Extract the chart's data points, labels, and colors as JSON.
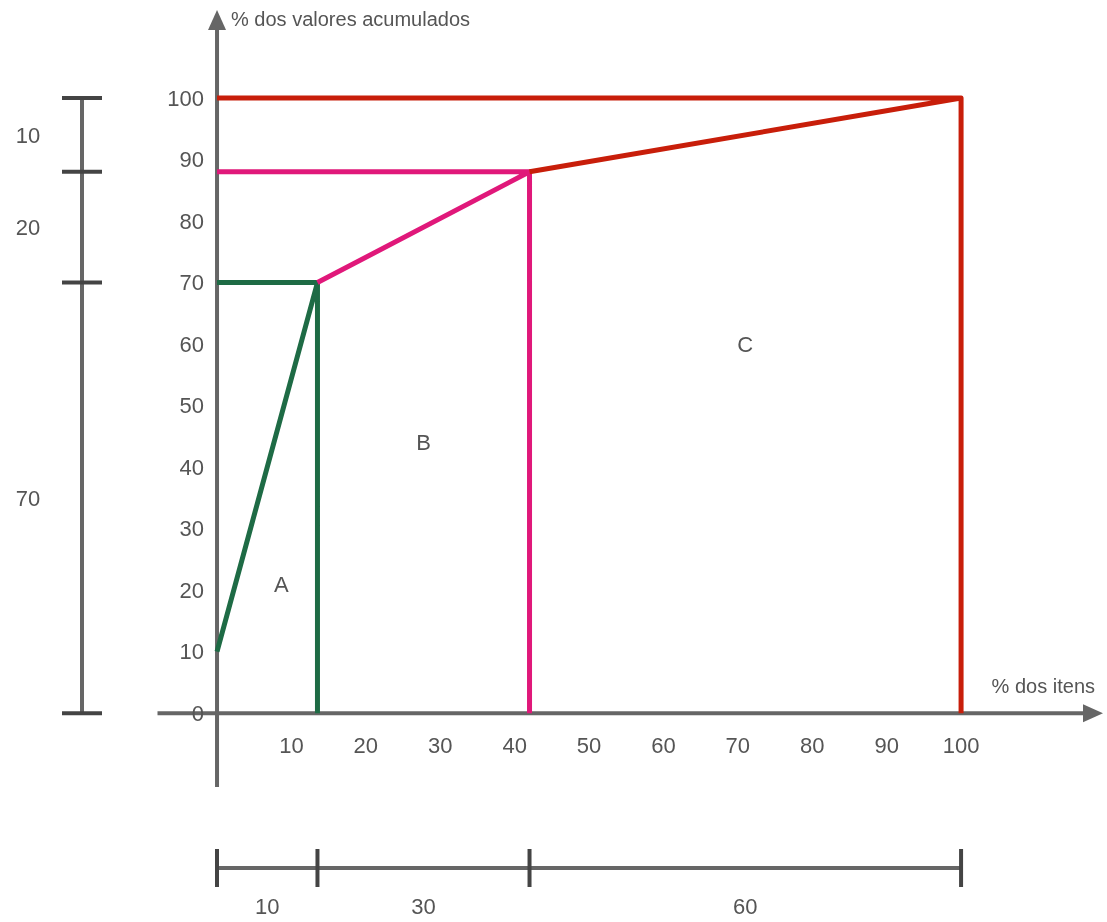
{
  "chart_data": {
    "type": "line",
    "xlabel": "% dos itens",
    "ylabel": "% dos valores acumulados",
    "xlim": [
      -8,
      118
    ],
    "ylim": [
      -12,
      113
    ],
    "xticks": [
      10,
      20,
      30,
      40,
      50,
      60,
      70,
      80,
      90,
      100
    ],
    "yticks": [
      0,
      10,
      20,
      30,
      40,
      50,
      60,
      70,
      80,
      90,
      100
    ],
    "grid": false,
    "marker": "none",
    "line_style": "solid",
    "series": [
      {
        "color": "#1e6b45",
        "x": [
          0,
          13.5,
          13.5,
          null,
          0,
          13.5
        ],
        "values": [
          10,
          70,
          0,
          null,
          70,
          70
        ]
      },
      {
        "color": "#e0187a",
        "x": [
          13.5,
          42,
          42,
          null,
          0,
          42
        ],
        "values": [
          70,
          88,
          0,
          null,
          88,
          88
        ]
      },
      {
        "color": "#c81e0a",
        "x": [
          42,
          100,
          100,
          null,
          0,
          100
        ],
        "values": [
          88,
          100,
          0,
          null,
          100,
          100
        ]
      }
    ],
    "annotations": [
      "A",
      "B",
      "C",
      "70",
      "20",
      "10",
      "10",
      "30",
      "60"
    ]
  }
}
